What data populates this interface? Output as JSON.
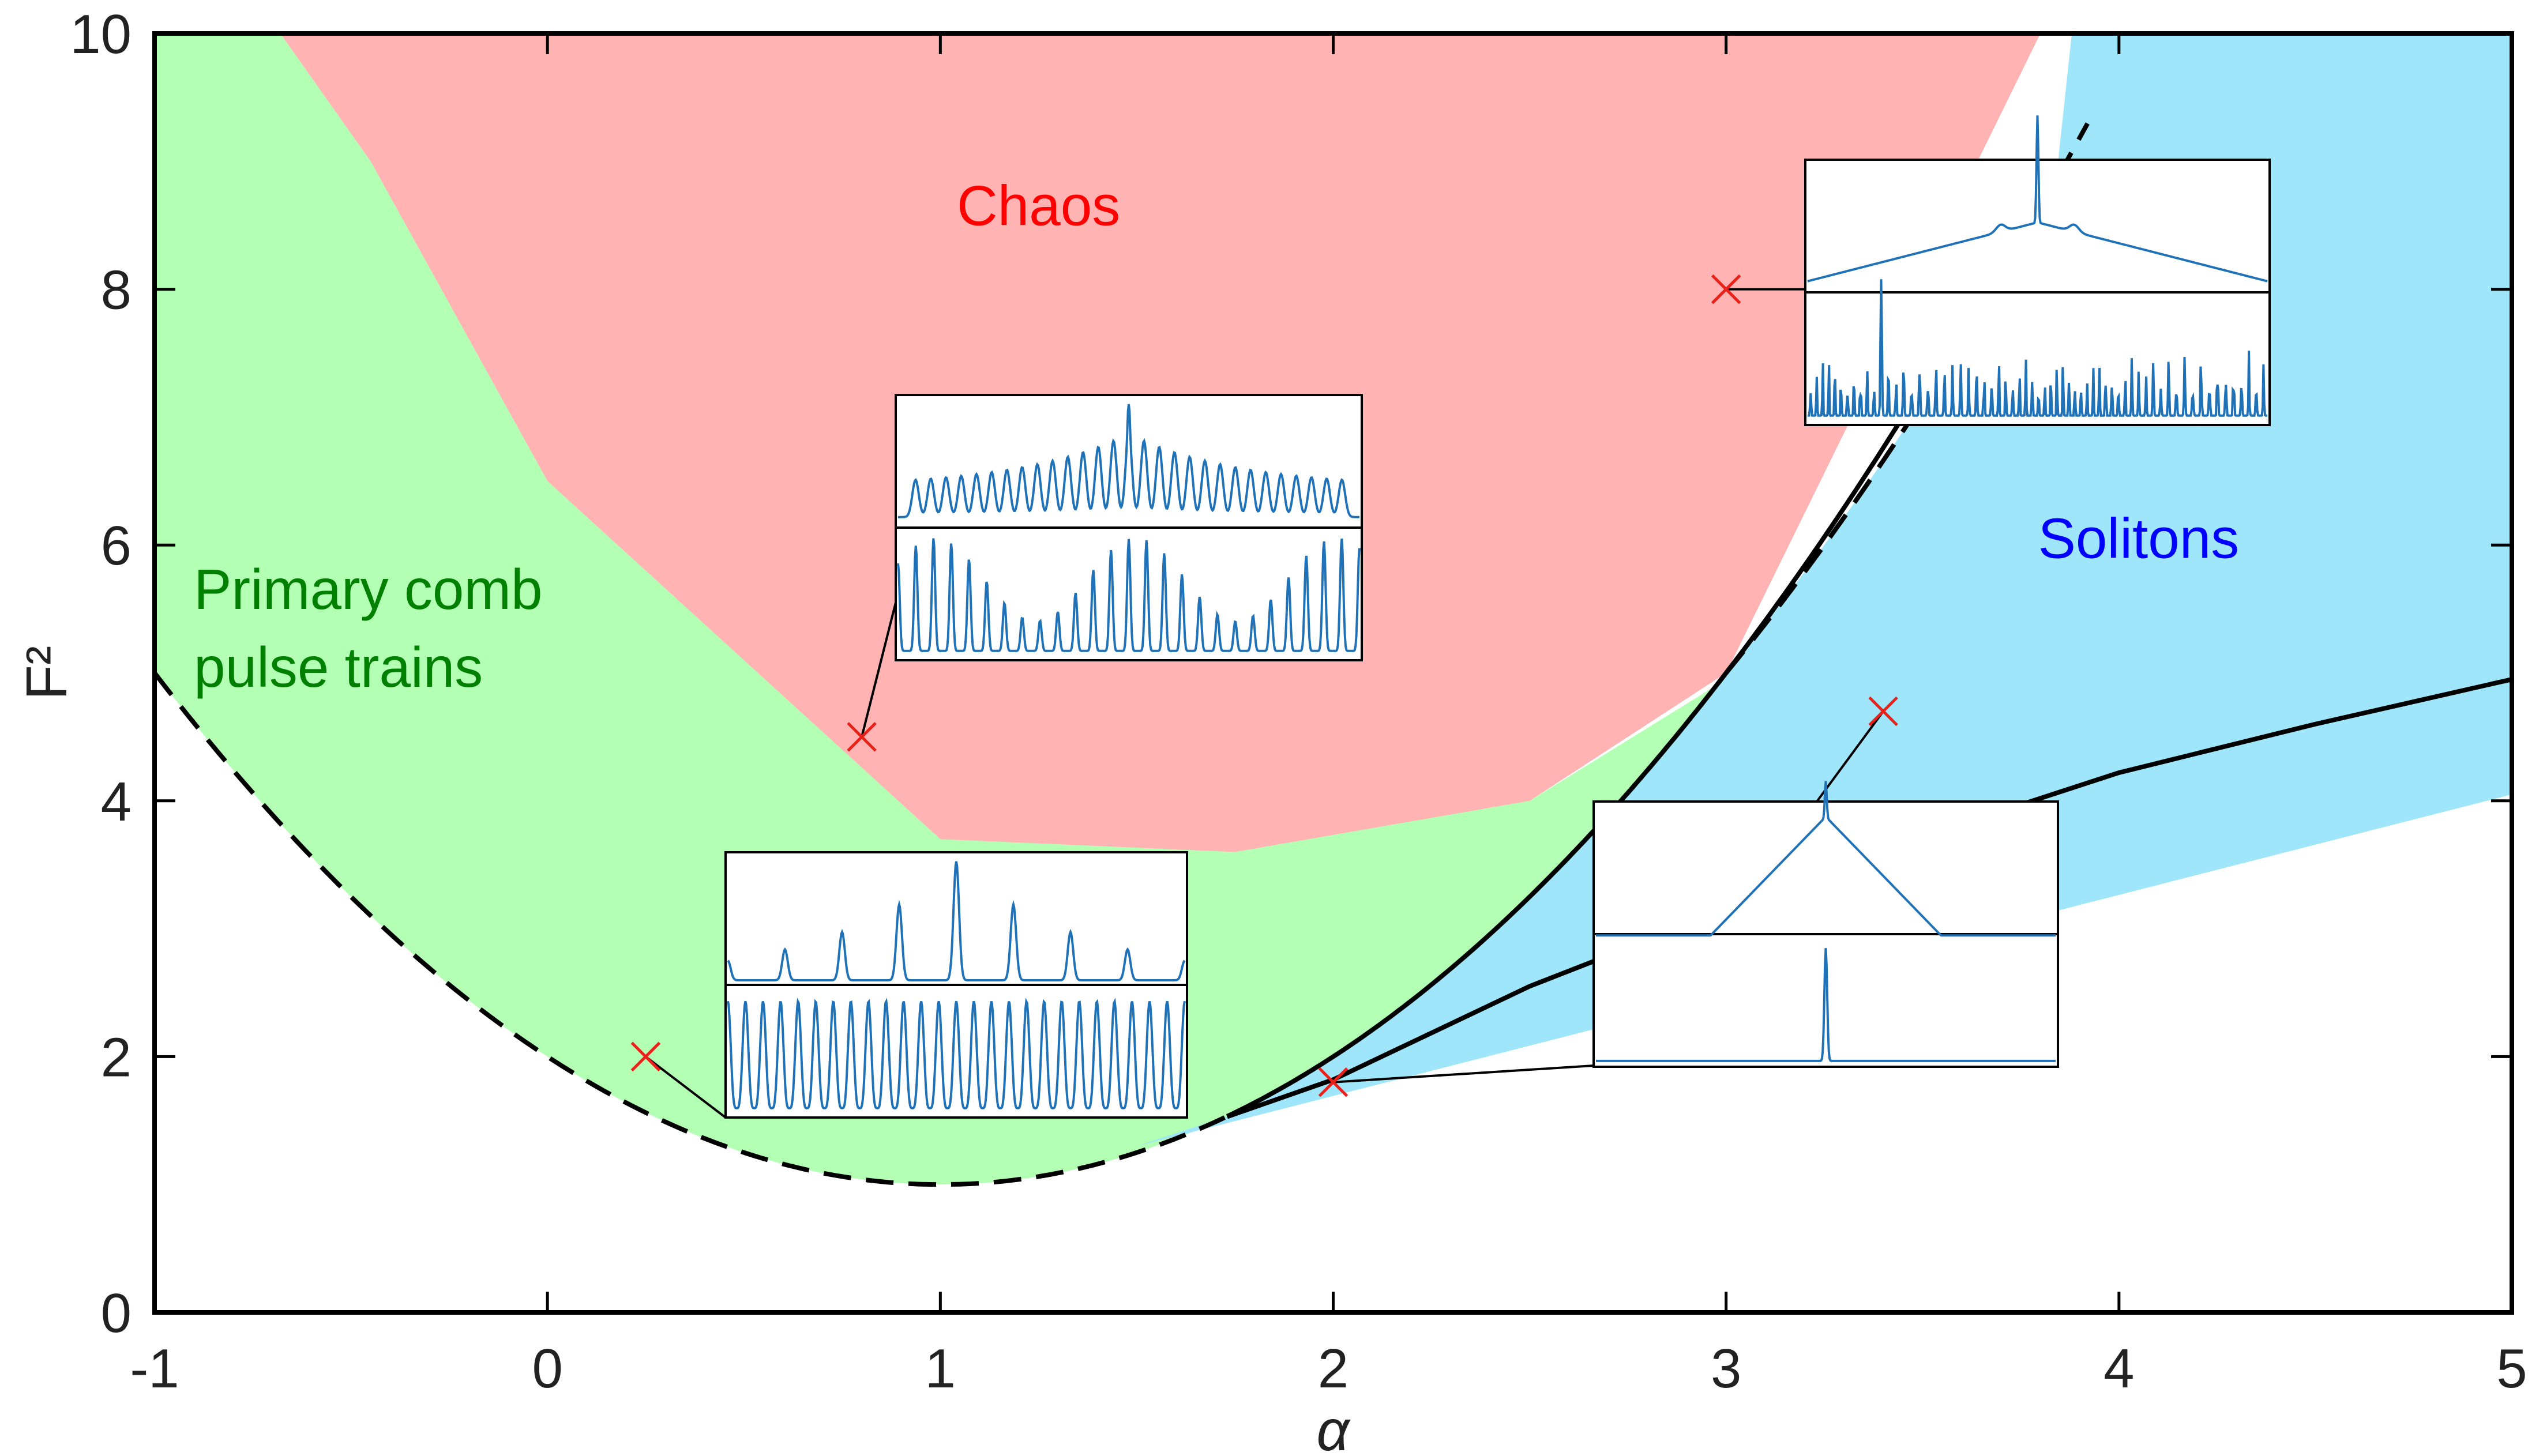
{
  "chart_data": {
    "type": "area",
    "xlabel": "α",
    "ylabel": "F²",
    "xlim": [
      -1,
      5
    ],
    "ylim": [
      0,
      10
    ],
    "xticks": [
      "-1",
      "0",
      "1",
      "2",
      "3",
      "4",
      "5"
    ],
    "yticks": [
      "0",
      "2",
      "4",
      "6",
      "8",
      "10"
    ],
    "grid": false,
    "colors": {
      "chaos": "#ffb3b3",
      "primary_comb": "#b3ffb3",
      "solitons": "#9fe6fa",
      "curve": "#000000",
      "marker": "#e8221b",
      "inset_trace": "#1f72b8"
    },
    "regions": [
      {
        "name": "Chaos",
        "label_position": [
          1.25,
          8.5
        ],
        "label_color": "#ff0000",
        "boundary": [
          [
            -0.68,
            10
          ],
          [
            -0.45,
            9.0
          ],
          [
            0.0,
            6.5
          ],
          [
            1.0,
            3.7
          ],
          [
            1.75,
            3.6
          ],
          [
            2.5,
            4.0
          ],
          [
            3.0,
            5.0
          ],
          [
            3.8,
            10
          ]
        ]
      },
      {
        "name": "Primary comb\npulse trains",
        "label_lines": [
          "Primary comb",
          "pulse trains"
        ],
        "label_position": [
          -0.9,
          5.5
        ],
        "label_color": "#008000",
        "boundary": [
          [
            -1,
            10
          ],
          [
            -0.68,
            10
          ],
          [
            -0.45,
            9.0
          ],
          [
            0.0,
            6.5
          ],
          [
            1.0,
            3.7
          ],
          [
            1.75,
            3.6
          ],
          [
            2.5,
            4.0
          ],
          [
            3.0,
            4.95
          ],
          [
            2.5,
            3.05
          ],
          [
            2.0,
            2.0
          ],
          [
            1.73,
            1.53
          ],
          [
            1.0,
            1.0
          ],
          [
            0.0,
            2.0
          ],
          [
            -1,
            5.0
          ]
        ]
      },
      {
        "name": "Solitons",
        "label_position": [
          4.05,
          5.9
        ],
        "label_color": "#0000ff",
        "boundary": [
          [
            3.88,
            10
          ],
          [
            5,
            10
          ],
          [
            5,
            4.05
          ],
          [
            1.5,
            1.3
          ],
          [
            1.73,
            1.53
          ],
          [
            2.5,
            3.05
          ],
          [
            3.0,
            4.95
          ],
          [
            3.4,
            6.6
          ]
        ]
      }
    ],
    "series": [
      {
        "style": "dashed",
        "equation": "F² = 1 + (α − 1)²",
        "segments": [
          [
            -1,
            1.732
          ],
          [
            3.0,
            3.88
          ]
        ]
      },
      {
        "style": "solid",
        "equation": "F² = 1 + (α − 1)²",
        "segments": [
          [
            1.732,
            3.8
          ]
        ]
      },
      {
        "style": "solid",
        "points": [
          [
            1.73,
            1.53
          ],
          [
            2.0,
            1.82
          ],
          [
            2.5,
            2.55
          ],
          [
            3.0,
            3.15
          ],
          [
            3.5,
            3.72
          ],
          [
            4.0,
            4.22
          ],
          [
            4.5,
            4.6
          ],
          [
            5.0,
            4.95
          ]
        ]
      }
    ],
    "markers": [
      {
        "x": 0.25,
        "y": 2.0,
        "inset": "primary"
      },
      {
        "x": 0.8,
        "y": 4.5,
        "inset": "breather"
      },
      {
        "x": 2.0,
        "y": 1.8,
        "inset": "soliton"
      },
      {
        "x": 3.0,
        "y": 8.0,
        "inset": "chaos"
      },
      {
        "x": 3.4,
        "y": 4.7,
        "inset": "soliton-2"
      }
    ]
  }
}
